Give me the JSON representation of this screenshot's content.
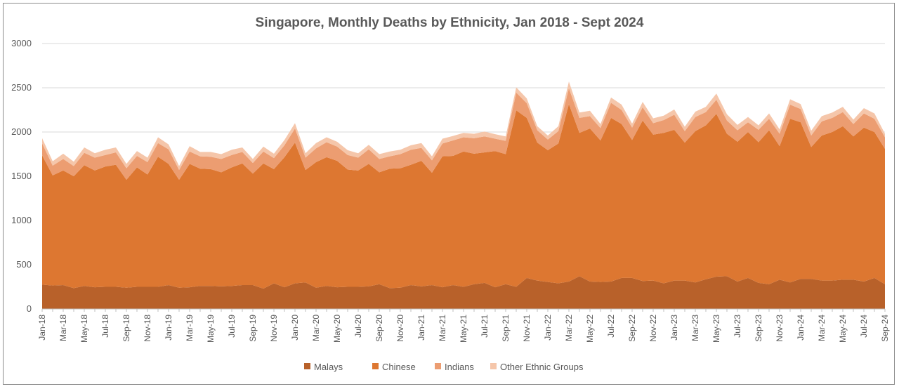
{
  "chart_data": {
    "type": "area",
    "stacked": true,
    "title": "Singapore, Monthly Deaths by Ethnicity, Jan 2018 - Sept 2024",
    "xlabel": "",
    "ylabel": "",
    "ylim": [
      0,
      3000
    ],
    "yticks": [
      0,
      500,
      1000,
      1500,
      2000,
      2500,
      3000
    ],
    "grid": "horizontal",
    "legend": "bottom",
    "xtick_labels": [
      "Jan-18",
      "Mar-18",
      "May-18",
      "Jul-18",
      "Sep-18",
      "Nov-18",
      "Jan-19",
      "Mar-19",
      "May-19",
      "Jul-19",
      "Sep-19",
      "Nov-19",
      "Jan-20",
      "Mar-20",
      "May-20",
      "Jul-20",
      "Sep-20",
      "Nov-20",
      "Jan-21",
      "Mar-21",
      "May-21",
      "Jul-21",
      "Sep-21",
      "Nov-21",
      "Jan-22",
      "Mar-22",
      "May-22",
      "Jul-22",
      "Sep-22",
      "Nov-22",
      "Jan-23",
      "Mar-23",
      "May-23",
      "Jul-23",
      "Sep-23",
      "Nov-23",
      "Jan-24",
      "Mar-24",
      "May-24",
      "Jul-24",
      "Sep-24"
    ],
    "x": [
      "Jan-18",
      "Feb-18",
      "Mar-18",
      "Apr-18",
      "May-18",
      "Jun-18",
      "Jul-18",
      "Aug-18",
      "Sep-18",
      "Oct-18",
      "Nov-18",
      "Dec-18",
      "Jan-19",
      "Feb-19",
      "Mar-19",
      "Apr-19",
      "May-19",
      "Jun-19",
      "Jul-19",
      "Aug-19",
      "Sep-19",
      "Oct-19",
      "Nov-19",
      "Dec-19",
      "Jan-20",
      "Feb-20",
      "Mar-20",
      "Apr-20",
      "May-20",
      "Jun-20",
      "Jul-20",
      "Aug-20",
      "Sep-20",
      "Oct-20",
      "Nov-20",
      "Dec-20",
      "Jan-21",
      "Feb-21",
      "Mar-21",
      "Apr-21",
      "May-21",
      "Jun-21",
      "Jul-21",
      "Aug-21",
      "Sep-21",
      "Oct-21",
      "Nov-21",
      "Dec-21",
      "Jan-22",
      "Feb-22",
      "Mar-22",
      "Apr-22",
      "May-22",
      "Jun-22",
      "Jul-22",
      "Aug-22",
      "Sep-22",
      "Oct-22",
      "Nov-22",
      "Dec-22",
      "Jan-23",
      "Feb-23",
      "Mar-23",
      "Apr-23",
      "May-23",
      "Jun-23",
      "Jul-23",
      "Aug-23",
      "Sep-23",
      "Oct-23",
      "Nov-23",
      "Dec-23",
      "Jan-24",
      "Feb-24",
      "Mar-24",
      "Apr-24",
      "May-24",
      "Jun-24",
      "Jul-24",
      "Aug-24",
      "Sep-24"
    ],
    "series": [
      {
        "name": "Malays",
        "color": "#b8612a",
        "values": [
          275,
          265,
          270,
          235,
          260,
          245,
          250,
          250,
          240,
          250,
          250,
          250,
          270,
          240,
          245,
          260,
          260,
          255,
          260,
          270,
          270,
          230,
          290,
          245,
          290,
          300,
          240,
          260,
          245,
          250,
          250,
          255,
          280,
          235,
          240,
          270,
          255,
          270,
          245,
          270,
          250,
          280,
          295,
          245,
          280,
          250,
          350,
          320,
          305,
          290,
          310,
          370,
          310,
          305,
          310,
          350,
          350,
          315,
          320,
          290,
          320,
          320,
          300,
          335,
          365,
          370,
          310,
          350,
          295,
          280,
          330,
          300,
          340,
          340,
          320,
          320,
          330,
          330,
          310,
          350,
          280
        ]
      },
      {
        "name": "Chinese",
        "color": "#dd7731",
        "values": [
          1460,
          1245,
          1295,
          1265,
          1365,
          1320,
          1360,
          1380,
          1220,
          1350,
          1270,
          1470,
          1370,
          1220,
          1395,
          1325,
          1320,
          1290,
          1340,
          1375,
          1260,
          1415,
          1290,
          1470,
          1590,
          1270,
          1420,
          1455,
          1430,
          1325,
          1315,
          1385,
          1265,
          1350,
          1350,
          1360,
          1420,
          1270,
          1480,
          1460,
          1530,
          1475,
          1475,
          1540,
          1470,
          1995,
          1810,
          1560,
          1490,
          1580,
          2005,
          1620,
          1730,
          1600,
          1850,
          1740,
          1560,
          1815,
          1650,
          1700,
          1705,
          1560,
          1710,
          1740,
          1840,
          1610,
          1580,
          1650,
          1590,
          1740,
          1510,
          1850,
          1770,
          1490,
          1640,
          1680,
          1735,
          1620,
          1740,
          1650,
          1530
        ]
      },
      {
        "name": "Indians",
        "color": "#ec9d71",
        "values": [
          135,
          110,
          130,
          115,
          140,
          145,
          130,
          140,
          130,
          130,
          140,
          155,
          165,
          110,
          140,
          140,
          140,
          150,
          140,
          130,
          120,
          135,
          125,
          135,
          160,
          140,
          155,
          170,
          160,
          165,
          145,
          165,
          150,
          140,
          160,
          170,
          145,
          140,
          145,
          175,
          160,
          175,
          180,
          140,
          150,
          200,
          165,
          140,
          120,
          140,
          180,
          170,
          140,
          140,
          170,
          160,
          140,
          150,
          130,
          145,
          170,
          130,
          160,
          150,
          160,
          150,
          130,
          110,
          140,
          130,
          140,
          160,
          150,
          130,
          160,
          160,
          160,
          140,
          160,
          150,
          130
        ]
      },
      {
        "name": "Other Ethnic Groups",
        "color": "#f5c6aa",
        "values": [
          60,
          50,
          60,
          50,
          60,
          50,
          60,
          55,
          50,
          55,
          50,
          65,
          55,
          45,
          60,
          50,
          55,
          55,
          60,
          50,
          45,
          55,
          50,
          60,
          60,
          50,
          60,
          55,
          55,
          55,
          50,
          50,
          55,
          55,
          50,
          50,
          55,
          45,
          55,
          50,
          50,
          50,
          55,
          50,
          50,
          60,
          55,
          45,
          45,
          55,
          75,
          60,
          60,
          45,
          60,
          60,
          45,
          60,
          55,
          50,
          60,
          50,
          60,
          60,
          70,
          70,
          60,
          60,
          50,
          60,
          50,
          60,
          55,
          55,
          60,
          60,
          60,
          50,
          60,
          60,
          40
        ]
      }
    ]
  }
}
